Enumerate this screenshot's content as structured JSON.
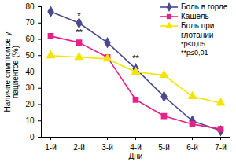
{
  "chart_data": {
    "type": "line",
    "categories": [
      "1-й",
      "2-й",
      "3-й",
      "4-й",
      "5-й",
      "6-й",
      "7-й"
    ],
    "series": [
      {
        "name": "Боль в горле",
        "color": "#4a4a8c",
        "marker": "diamond",
        "values": [
          77,
          70,
          58,
          42,
          25,
          10,
          4
        ]
      },
      {
        "name": "Кашель",
        "color": "#e8208a",
        "marker": "square",
        "values": [
          62,
          58,
          49,
          23,
          13,
          8,
          5
        ]
      },
      {
        "name": "Боль при глотании",
        "color": "#f2e600",
        "marker": "triangle",
        "values": [
          50,
          49,
          48,
          40,
          38,
          25,
          21
        ]
      }
    ],
    "xlabel": "Дни",
    "ylabel": "Наличие симптомов у пациентов (%)",
    "ylim": [
      0,
      80
    ],
    "yticks": [
      0,
      10,
      20,
      30,
      40,
      50,
      60,
      70,
      80
    ],
    "grid": false,
    "legend": "upper right",
    "annotations": [
      {
        "text": "*",
        "x": "2-й",
        "y": 74
      },
      {
        "text": "**",
        "x": "2-й",
        "y": 64
      },
      {
        "text": "**",
        "x": "4-й",
        "y": 48
      }
    ],
    "notes": [
      "*p≤0,05",
      "**p≤0,01"
    ]
  }
}
